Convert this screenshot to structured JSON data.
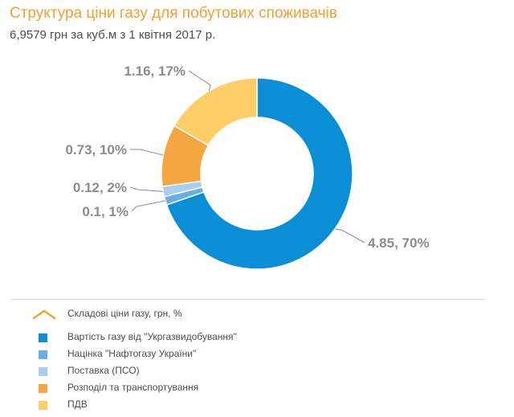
{
  "header": {
    "title": "Структура ціни газу для побутових споживачів",
    "subtitle": "6,9579 грн за куб.м з 1 квітня 2017 р."
  },
  "legend": {
    "title": "Складові ціни газу, грн, %",
    "toggle_icon": "chevron-up-icon"
  },
  "chart_data": {
    "type": "pie",
    "style": "donut",
    "title": "Структура ціни газу для побутових споживачів",
    "subtitle": "6,9579 грн за куб.м з 1 квітня 2017 р.",
    "legend_title": "Складові ціни газу, грн, %",
    "legend_position": "bottom",
    "slices": [
      {
        "name": "Вартість газу від \"Укргазвидобування\"",
        "value": 4.85,
        "percent": 70,
        "label": "4.85, 70%",
        "color": "#0a8fd6"
      },
      {
        "name": "Націнка \"Нафтогазу України\"",
        "value": 0.1,
        "percent": 1,
        "label": "0.1, 1%",
        "color": "#6aaee0"
      },
      {
        "name": "Поставка (ПСО)",
        "value": 0.12,
        "percent": 2,
        "label": "0.12, 2%",
        "color": "#a9cdee"
      },
      {
        "name": "Розподіл та транспортування",
        "value": 0.73,
        "percent": 10,
        "label": "0.73, 10%",
        "color": "#f4a640"
      },
      {
        "name": "ПДВ",
        "value": 1.16,
        "percent": 17,
        "label": "1.16, 17%",
        "color": "#fdcd66"
      }
    ]
  }
}
